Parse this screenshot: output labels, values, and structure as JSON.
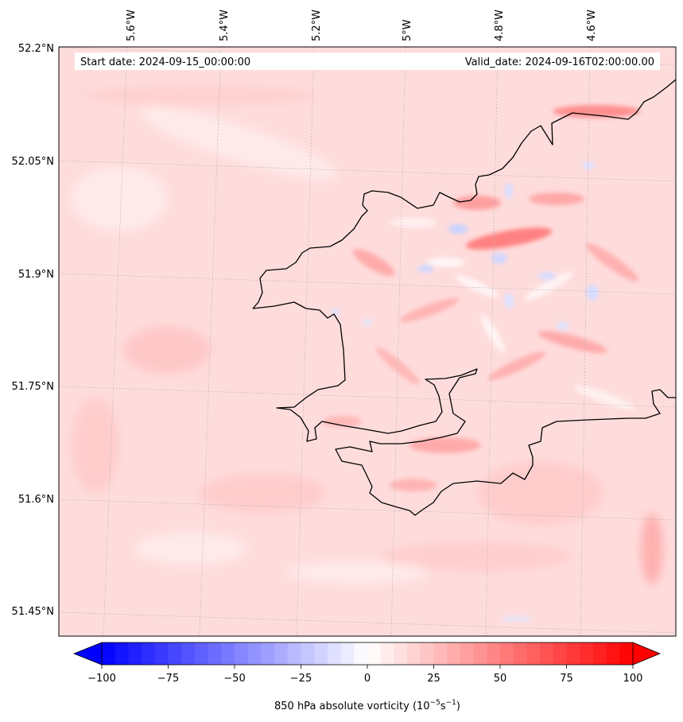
{
  "header": {
    "start_date": "Start date: 2024-09-15_00:00:00",
    "valid_date": "Valid_date: 2024-09-16T02:00:00.00"
  },
  "map": {
    "lon_labels": [
      "5.6°W",
      "5.4°W",
      "5.2°W",
      "5°W",
      "4.8°W",
      "4.6°W"
    ],
    "lat_labels": [
      "52.2°N",
      "52.05°N",
      "51.9°N",
      "51.75°N",
      "51.6°N",
      "51.45°N"
    ]
  },
  "colorbar": {
    "tick_labels": [
      "−100",
      "−75",
      "−50",
      "−25",
      "0",
      "25",
      "50",
      "75",
      "100"
    ],
    "label_main": "850 hPa absolute vorticity (10",
    "label_exp1": "−5",
    "label_mid": "s",
    "label_exp2": "−1",
    "label_end": ")",
    "vmin": -100,
    "vmax": 100,
    "levels": 41,
    "low_color": "#0000ff",
    "mid_color": "#ffffff",
    "high_color": "#ff0000"
  }
}
